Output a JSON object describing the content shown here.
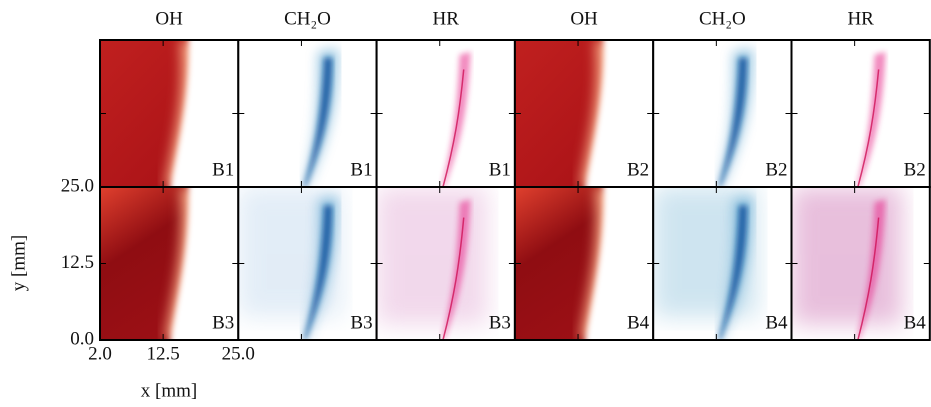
{
  "chart_data": {
    "type": "image-grid",
    "columns": [
      "OH",
      "CH₂O",
      "HR",
      "OH",
      "CH₂O",
      "HR"
    ],
    "panels": [
      [
        "B1",
        "B1",
        "B1",
        "B2",
        "B2",
        "B2"
      ],
      [
        "B3",
        "B3",
        "B3",
        "B4",
        "B4",
        "B4"
      ]
    ],
    "x_label": "x [mm]",
    "y_label": "y [mm]",
    "xlim": [
      2,
      25
    ],
    "xticks": [
      {
        "value": 2,
        "label": "2.0"
      },
      12.5,
      {
        "value": 25,
        "label": "25.0"
      }
    ],
    "ylim": [
      0,
      25
    ],
    "yticks": [
      {
        "value": 0,
        "label": "0.0"
      },
      12.5,
      {
        "value": 25,
        "label": "25.0"
      }
    ]
  }
}
